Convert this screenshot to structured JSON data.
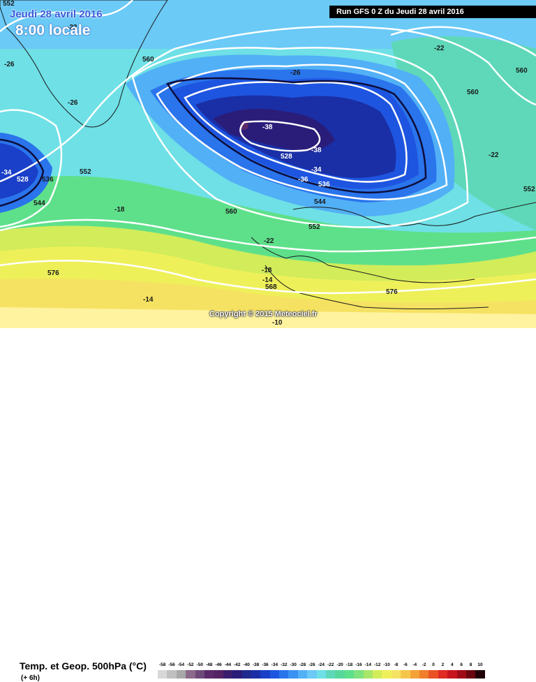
{
  "title": {
    "date": "Jeudi 28 avril 2016",
    "time": "8:00 locale"
  },
  "run_info": "Run GFS 0 Z du Jeudi 28 avril 2016",
  "copyright": "Copyright © 2015 Meteociel.fr",
  "legend": {
    "title": "Temp. et Geop. 500hPa (°C)",
    "step": "(+ 6h)",
    "scale": [
      {
        "v": "-58",
        "c": "#d8d8d8"
      },
      {
        "v": "-56",
        "c": "#c0c0c0"
      },
      {
        "v": "-54",
        "c": "#a8a8a8"
      },
      {
        "v": "-52",
        "c": "#8c6a8c"
      },
      {
        "v": "-50",
        "c": "#6e4a7a"
      },
      {
        "v": "-48",
        "c": "#5a2a6a"
      },
      {
        "v": "-46",
        "c": "#552266"
      },
      {
        "v": "-44",
        "c": "#3a1f6e"
      },
      {
        "v": "-42",
        "c": "#2a1d7a"
      },
      {
        "v": "-40",
        "c": "#1f2a8e"
      },
      {
        "v": "-38",
        "c": "#1a2fa6"
      },
      {
        "v": "-36",
        "c": "#1a3fc8"
      },
      {
        "v": "-34",
        "c": "#1e55e0"
      },
      {
        "v": "-32",
        "c": "#2a74ec"
      },
      {
        "v": "-30",
        "c": "#3c92f2"
      },
      {
        "v": "-28",
        "c": "#52b0f6"
      },
      {
        "v": "-26",
        "c": "#6bcaf6"
      },
      {
        "v": "-24",
        "c": "#6ee0e6"
      },
      {
        "v": "-22",
        "c": "#5ed8b8"
      },
      {
        "v": "-20",
        "c": "#56d89c"
      },
      {
        "v": "-18",
        "c": "#5ee08a"
      },
      {
        "v": "-16",
        "c": "#7ee27e"
      },
      {
        "v": "-14",
        "c": "#a8e66a"
      },
      {
        "v": "-12",
        "c": "#d2ec5a"
      },
      {
        "v": "-10",
        "c": "#eef05a"
      },
      {
        "v": "-8",
        "c": "#f6e262"
      },
      {
        "v": "-6",
        "c": "#f6c64a"
      },
      {
        "v": "-4",
        "c": "#f4a236"
      },
      {
        "v": "-2",
        "c": "#f07e2a"
      },
      {
        "v": "0",
        "c": "#ea5226"
      },
      {
        "v": "2",
        "c": "#e02a22"
      },
      {
        "v": "4",
        "c": "#c8141e"
      },
      {
        "v": "6",
        "c": "#a00a18"
      },
      {
        "v": "8",
        "c": "#6a0410"
      },
      {
        "v": "10",
        "c": "#200006"
      }
    ]
  },
  "labels": {
    "temps": [
      "-26",
      "-22",
      "-26",
      "-26",
      "-22",
      "-34",
      "-18",
      "-38",
      "-38",
      "-34",
      "-36",
      "-22",
      "-18",
      "-14",
      "-14",
      "-10",
      "-22"
    ],
    "geop": [
      "552",
      "560",
      "552",
      "528",
      "536",
      "544",
      "560",
      "576",
      "528",
      "536",
      "544",
      "552",
      "560",
      "568",
      "576",
      "560",
      "568",
      "552",
      "560"
    ]
  },
  "colors": {
    "trough_core": "#2a1d7a",
    "contour": "#ffffff",
    "coast": "#000000"
  }
}
